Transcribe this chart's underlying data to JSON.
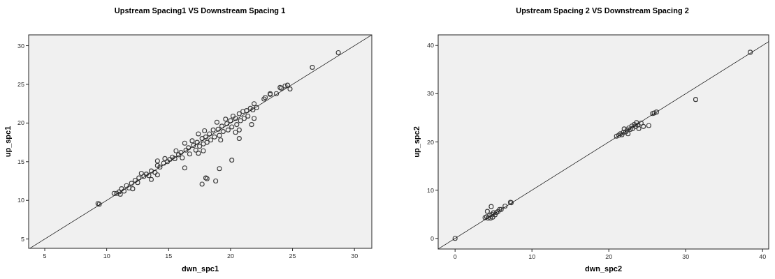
{
  "chart_data": [
    {
      "type": "scatter",
      "title": "Upstream Spacing1 VS Downstream Spacing 1",
      "xlabel": "dwn_spc1",
      "ylabel": "up_spc1",
      "xlim": [
        3.7,
        31.4
      ],
      "ylim": [
        3.8,
        31.4
      ],
      "xticks": [
        5,
        10,
        15,
        20,
        25,
        30
      ],
      "yticks": [
        5,
        10,
        15,
        20,
        25,
        30
      ],
      "grid": false,
      "series": [
        {
          "marker": "circle",
          "color": "#3c3c3c",
          "x": [
            9.3,
            9.4,
            10.6,
            10.8,
            11.0,
            11.1,
            11.2,
            11.4,
            11.6,
            11.8,
            12.0,
            12.1,
            12.3,
            12.5,
            12.6,
            12.8,
            13.0,
            13.2,
            13.4,
            13.6,
            13.6,
            13.9,
            14.1,
            14.1,
            14.1,
            14.3,
            14.6,
            14.7,
            14.9,
            15.1,
            15.3,
            15.5,
            15.6,
            15.8,
            16.0,
            16.1,
            16.3,
            16.3,
            16.4,
            16.6,
            16.7,
            16.9,
            17.0,
            17.2,
            17.3,
            17.4,
            17.4,
            17.5,
            17.7,
            17.7,
            17.8,
            17.8,
            17.9,
            18.0,
            18.0,
            18.1,
            18.1,
            18.3,
            18.4,
            18.6,
            18.7,
            18.8,
            18.9,
            19.0,
            19.1,
            19.1,
            19.2,
            19.3,
            19.4,
            19.6,
            19.7,
            19.8,
            20.0,
            20.1,
            20.1,
            20.2,
            20.4,
            20.4,
            20.5,
            20.7,
            20.7,
            20.7,
            20.8,
            21.0,
            21.1,
            21.3,
            21.4,
            21.6,
            21.7,
            21.8,
            21.9,
            21.9,
            22.1,
            22.7,
            22.8,
            23.2,
            23.2,
            23.7,
            24.0,
            24.1,
            24.4,
            24.6,
            24.8,
            26.6,
            28.7
          ],
          "values": [
            9.6,
            9.5,
            10.9,
            10.9,
            11.1,
            10.8,
            11.5,
            11.2,
            11.9,
            11.6,
            12.2,
            11.5,
            12.6,
            12.3,
            12.9,
            13.5,
            13.1,
            13.4,
            13.2,
            13.8,
            12.7,
            13.6,
            14.5,
            15.1,
            13.3,
            14.3,
            14.8,
            15.4,
            15.0,
            15.3,
            15.6,
            15.4,
            16.4,
            15.9,
            16.2,
            15.5,
            17.4,
            14.2,
            16.5,
            16.8,
            16.0,
            17.7,
            17.1,
            16.5,
            17.5,
            18.6,
            16.1,
            17.0,
            18.0,
            12.1,
            17.3,
            16.4,
            19.0,
            18.2,
            12.9,
            17.5,
            12.8,
            18.6,
            17.8,
            19.1,
            18.2,
            12.5,
            20.1,
            19.2,
            18.4,
            14.1,
            17.8,
            19.6,
            18.9,
            20.5,
            19.9,
            19.1,
            20.3,
            19.5,
            15.2,
            20.9,
            20.6,
            18.8,
            19.8,
            21.2,
            19.1,
            18.0,
            20.3,
            21.5,
            20.6,
            21.6,
            20.9,
            21.9,
            19.8,
            21.7,
            22.5,
            20.6,
            22.0,
            23.1,
            23.3,
            23.8,
            23.7,
            23.8,
            24.6,
            24.5,
            24.8,
            24.9,
            24.4,
            27.2,
            29.1
          ]
        },
        {
          "type": "line",
          "marker": "none",
          "color": "#000000",
          "x": [
            3.8,
            31.4
          ],
          "values": [
            3.8,
            31.4
          ]
        }
      ]
    },
    {
      "type": "scatter",
      "title": "Upstream Spacing 2 VS Downstream Spacing 2",
      "xlabel": "dwn_spc2",
      "ylabel": "up_spc2",
      "xlim": [
        -2.2,
        40.8
      ],
      "ylim": [
        -2.2,
        42.2
      ],
      "xticks": [
        0,
        10,
        20,
        30,
        40
      ],
      "yticks": [
        0,
        10,
        20,
        30,
        40
      ],
      "grid": false,
      "series": [
        {
          "marker": "circle",
          "color": "#3c3c3c",
          "x": [
            0,
            3.9,
            4.1,
            4.2,
            4.3,
            4.5,
            4.6,
            4.7,
            4.8,
            4.9,
            5.0,
            5.2,
            5.4,
            5.6,
            5.8,
            6.0,
            6.5,
            7.2,
            7.3,
            21.0,
            21.3,
            21.5,
            21.7,
            21.9,
            22.0,
            22.2,
            22.4,
            22.5,
            22.6,
            22.8,
            23.0,
            23.1,
            23.3,
            23.5,
            23.6,
            23.8,
            23.9,
            24.2,
            24.5,
            25.2,
            25.7,
            25.9,
            26.2,
            31.3,
            38.4
          ],
          "values": [
            0,
            4.3,
            4.5,
            5.6,
            4.2,
            4.8,
            4.2,
            6.6,
            5.0,
            4.4,
            5.3,
            4.9,
            5.4,
            5.6,
            6.0,
            6.0,
            6.7,
            7.5,
            7.4,
            21.2,
            21.4,
            21.7,
            21.5,
            22.0,
            22.7,
            22.1,
            22.5,
            21.7,
            22.9,
            22.6,
            23.3,
            22.8,
            23.6,
            23.2,
            24.0,
            23.5,
            22.8,
            23.9,
            23.2,
            23.4,
            25.9,
            26.0,
            26.2,
            28.8,
            38.6
          ]
        },
        {
          "type": "line",
          "marker": "none",
          "color": "#000000",
          "x": [
            -2.2,
            40.8
          ],
          "values": [
            -2.2,
            40.8
          ]
        }
      ]
    }
  ]
}
